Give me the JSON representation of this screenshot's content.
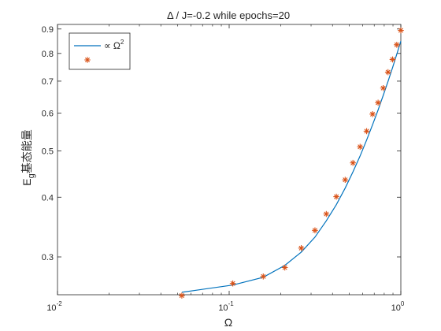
{
  "chart_data": {
    "type": "line",
    "title": "Δ / J=-0.2 while epochs=20",
    "xlabel": "Ω",
    "ylabel_main": "E",
    "ylabel_sub": "g",
    "ylabel_tail": "基态能量",
    "x_scale": "log",
    "y_scale": "log",
    "xlim": [
      0.01,
      1.0
    ],
    "ylim": [
      0.25,
      0.92
    ],
    "x_ticks": [
      {
        "value": 0.01,
        "base": "10",
        "exp": "-2"
      },
      {
        "value": 0.1,
        "base": "10",
        "exp": "-1"
      },
      {
        "value": 1.0,
        "base": "10",
        "exp": "0"
      }
    ],
    "y_ticks": [
      {
        "value": 0.3,
        "label": "0.3"
      },
      {
        "value": 0.4,
        "label": "0.4"
      },
      {
        "value": 0.5,
        "label": "0.5"
      },
      {
        "value": 0.6,
        "label": "0.6"
      },
      {
        "value": 0.7,
        "label": "0.7"
      },
      {
        "value": 0.8,
        "label": "0.8"
      },
      {
        "value": 0.9,
        "label": "0.9"
      }
    ],
    "grid": false,
    "legend_position": "top-left",
    "series": [
      {
        "name": "∝ Ω²",
        "legend_text": "∝ Ω",
        "legend_sup": "2",
        "style": "line",
        "color": "#0072BD",
        "x": [
          0.053,
          0.105,
          0.158,
          0.211,
          0.263,
          0.316,
          0.368,
          0.421,
          0.474,
          0.526,
          0.579,
          0.632,
          0.684,
          0.737,
          0.789,
          0.842,
          0.895,
          0.947,
          1.0
        ],
        "y": [
          0.253,
          0.262,
          0.272,
          0.288,
          0.307,
          0.33,
          0.357,
          0.386,
          0.418,
          0.452,
          0.488,
          0.527,
          0.567,
          0.609,
          0.653,
          0.699,
          0.747,
          0.797,
          0.849
        ]
      },
      {
        "name": "",
        "style": "markers",
        "marker": "*",
        "color": "#D95319",
        "x": [
          0.053,
          0.105,
          0.158,
          0.211,
          0.263,
          0.316,
          0.368,
          0.421,
          0.474,
          0.526,
          0.579,
          0.632,
          0.684,
          0.737,
          0.789,
          0.842,
          0.895,
          0.947,
          1.0
        ],
        "y": [
          0.249,
          0.264,
          0.273,
          0.285,
          0.313,
          0.341,
          0.369,
          0.401,
          0.435,
          0.472,
          0.51,
          0.55,
          0.597,
          0.631,
          0.677,
          0.731,
          0.777,
          0.834,
          0.894
        ]
      }
    ]
  }
}
